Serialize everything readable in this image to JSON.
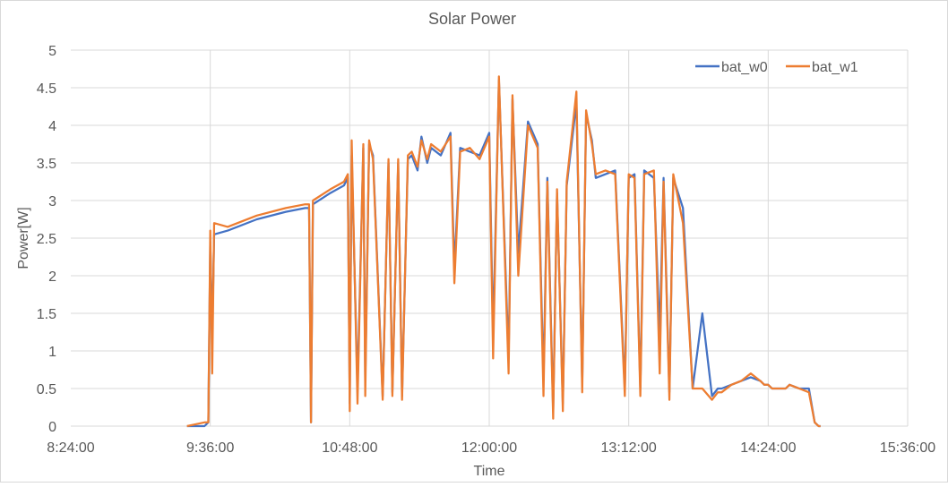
{
  "chart_data": {
    "type": "line",
    "title": "Solar Power",
    "xlabel": "Time",
    "ylabel": "Power[W]",
    "xlim": [
      "8:24:00",
      "15:36:00"
    ],
    "ylim": [
      0,
      5
    ],
    "x_ticks": [
      "8:24:00",
      "9:36:00",
      "10:48:00",
      "12:00:00",
      "13:12:00",
      "14:24:00",
      "15:36:00"
    ],
    "y_ticks": [
      "0",
      "0.5",
      "1",
      "1.5",
      "2",
      "2.5",
      "3",
      "3.5",
      "4",
      "4.5",
      "5"
    ],
    "grid": true,
    "legend_position": "top-right",
    "series": [
      {
        "name": "bat_w0",
        "color": "#4472C4",
        "x": [
          "9:24:00",
          "9:33:00",
          "9:35:00",
          "9:36:00",
          "9:37:00",
          "9:38:00",
          "9:45:00",
          "10:00:00",
          "10:15:00",
          "10:25:00",
          "10:27:00",
          "10:28:00",
          "10:29:00",
          "10:38:00",
          "10:45:00",
          "10:47:00",
          "10:48:00",
          "10:49:00",
          "10:52:00",
          "10:55:00",
          "10:56:00",
          "10:58:00",
          "11:00:00",
          "11:05:00",
          "11:08:00",
          "11:10:00",
          "11:13:00",
          "11:15:00",
          "11:18:00",
          "11:20:00",
          "11:23:00",
          "11:25:00",
          "11:28:00",
          "11:30:00",
          "11:35:00",
          "11:40:00",
          "11:42:00",
          "11:45:00",
          "11:50:00",
          "11:55:00",
          "12:00:00",
          "12:02:00",
          "12:05:00",
          "12:10:00",
          "12:12:00",
          "12:15:00",
          "12:20:00",
          "12:25:00",
          "12:28:00",
          "12:30:00",
          "12:33:00",
          "12:35:00",
          "12:38:00",
          "12:40:00",
          "12:45:00",
          "12:48:00",
          "12:50:00",
          "12:53:00",
          "12:55:00",
          "13:00:00",
          "13:05:00",
          "13:10:00",
          "13:12:00",
          "13:15:00",
          "13:18:00",
          "13:20:00",
          "13:25:00",
          "13:28:00",
          "13:30:00",
          "13:33:00",
          "13:35:00",
          "13:40:00",
          "13:45:00",
          "13:50:00",
          "13:55:00",
          "13:58:00",
          "14:00:00",
          "14:05:00",
          "14:10:00",
          "14:15:00",
          "14:20:00",
          "14:22:00",
          "14:24:00",
          "14:26:00",
          "14:28:00",
          "14:30:00",
          "14:33:00",
          "14:35:00",
          "14:40:00",
          "14:45:00",
          "14:48:00",
          "14:50:00",
          "14:51:00"
        ],
        "y": [
          0,
          0,
          0.05,
          2.45,
          1.2,
          2.55,
          2.6,
          2.75,
          2.85,
          2.9,
          2.9,
          0.05,
          2.95,
          3.1,
          3.2,
          3.3,
          0.3,
          3.6,
          0.5,
          3.7,
          0.6,
          3.75,
          3.6,
          0.4,
          3.5,
          0.45,
          3.5,
          0.4,
          3.55,
          3.6,
          3.4,
          3.85,
          3.5,
          3.7,
          3.6,
          3.9,
          2.1,
          3.7,
          3.65,
          3.6,
          3.9,
          1.2,
          4.6,
          0.9,
          4.35,
          2.3,
          4.05,
          3.75,
          0.6,
          3.3,
          0.2,
          3.1,
          0.3,
          3.2,
          4.3,
          0.55,
          4.15,
          3.8,
          3.3,
          3.35,
          3.4,
          0.5,
          3.3,
          3.35,
          0.5,
          3.4,
          3.3,
          1.2,
          3.3,
          0.45,
          3.3,
          2.9,
          0.5,
          1.5,
          0.4,
          0.5,
          0.5,
          0.55,
          0.6,
          0.65,
          0.6,
          0.55,
          0.55,
          0.5,
          0.5,
          0.5,
          0.5,
          0.55,
          0.5,
          0.5,
          0.05,
          0,
          0
        ]
      },
      {
        "name": "bat_w1",
        "color": "#ED7D31",
        "x": [
          "9:24:00",
          "9:33:00",
          "9:35:00",
          "9:36:00",
          "9:37:00",
          "9:38:00",
          "9:45:00",
          "10:00:00",
          "10:15:00",
          "10:25:00",
          "10:27:00",
          "10:28:00",
          "10:29:00",
          "10:38:00",
          "10:45:00",
          "10:47:00",
          "10:48:00",
          "10:49:00",
          "10:52:00",
          "10:55:00",
          "10:56:00",
          "10:58:00",
          "11:00:00",
          "11:05:00",
          "11:08:00",
          "11:10:00",
          "11:13:00",
          "11:15:00",
          "11:18:00",
          "11:20:00",
          "11:23:00",
          "11:25:00",
          "11:28:00",
          "11:30:00",
          "11:35:00",
          "11:40:00",
          "11:42:00",
          "11:45:00",
          "11:50:00",
          "11:55:00",
          "12:00:00",
          "12:02:00",
          "12:05:00",
          "12:10:00",
          "12:12:00",
          "12:15:00",
          "12:20:00",
          "12:25:00",
          "12:28:00",
          "12:30:00",
          "12:33:00",
          "12:35:00",
          "12:38:00",
          "12:40:00",
          "12:45:00",
          "12:48:00",
          "12:50:00",
          "12:53:00",
          "12:55:00",
          "13:00:00",
          "13:05:00",
          "13:10:00",
          "13:12:00",
          "13:15:00",
          "13:18:00",
          "13:20:00",
          "13:25:00",
          "13:28:00",
          "13:30:00",
          "13:33:00",
          "13:35:00",
          "13:40:00",
          "13:45:00",
          "13:50:00",
          "13:55:00",
          "13:58:00",
          "14:00:00",
          "14:05:00",
          "14:10:00",
          "14:15:00",
          "14:20:00",
          "14:22:00",
          "14:24:00",
          "14:26:00",
          "14:28:00",
          "14:30:00",
          "14:33:00",
          "14:35:00",
          "14:40:00",
          "14:45:00",
          "14:48:00",
          "14:50:00",
          "14:51:00"
        ],
        "y": [
          0,
          0.05,
          0.05,
          2.6,
          0.7,
          2.7,
          2.65,
          2.8,
          2.9,
          2.95,
          2.95,
          0.05,
          3.0,
          3.15,
          3.25,
          3.35,
          0.2,
          3.8,
          0.3,
          3.75,
          0.4,
          3.8,
          3.55,
          0.35,
          3.55,
          0.4,
          3.55,
          0.35,
          3.6,
          3.65,
          3.45,
          3.8,
          3.55,
          3.75,
          3.65,
          3.85,
          1.9,
          3.65,
          3.7,
          3.55,
          3.85,
          0.9,
          4.65,
          0.7,
          4.4,
          2.0,
          4.0,
          3.7,
          0.4,
          3.25,
          0.1,
          3.15,
          0.2,
          3.25,
          4.45,
          0.45,
          4.2,
          3.75,
          3.35,
          3.4,
          3.35,
          0.4,
          3.35,
          3.3,
          0.4,
          3.35,
          3.4,
          0.7,
          3.25,
          0.35,
          3.35,
          2.7,
          0.5,
          0.5,
          0.35,
          0.45,
          0.45,
          0.55,
          0.6,
          0.7,
          0.6,
          0.55,
          0.55,
          0.5,
          0.5,
          0.5,
          0.5,
          0.55,
          0.5,
          0.45,
          0.05,
          0,
          0
        ]
      }
    ]
  }
}
